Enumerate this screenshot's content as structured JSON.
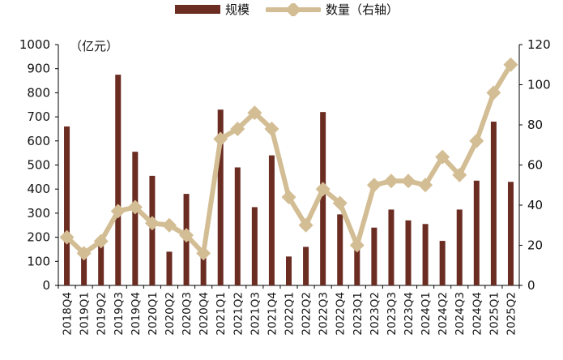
{
  "legend": {
    "bar_label": "规模",
    "line_label": "数量（右轴）"
  },
  "unit_label": "（亿元）",
  "colors": {
    "bar": "#6B2C22",
    "line": "#D3BD94"
  },
  "chart_data": {
    "type": "bar+line",
    "categories": [
      "2018Q4",
      "2019Q1",
      "2019Q2",
      "2019Q3",
      "2019Q4",
      "2020Q1",
      "2020Q2",
      "2020Q3",
      "2020Q4",
      "2021Q1",
      "2021Q2",
      "2021Q3",
      "2021Q4",
      "2022Q1",
      "2022Q2",
      "2022Q3",
      "2022Q4",
      "2023Q1",
      "2023Q2",
      "2023Q3",
      "2023Q4",
      "2024Q1",
      "2024Q2",
      "2024Q3",
      "2024Q4",
      "2025Q1",
      "2025Q2"
    ],
    "series": [
      {
        "name": "规模",
        "type": "bar",
        "axis": "left",
        "values": [
          660,
          125,
          185,
          875,
          555,
          455,
          140,
          380,
          120,
          730,
          490,
          325,
          540,
          120,
          160,
          720,
          295,
          150,
          240,
          315,
          270,
          255,
          185,
          315,
          435,
          680,
          430
        ]
      },
      {
        "name": "数量（右轴）",
        "type": "line",
        "axis": "right",
        "values": [
          24,
          16,
          22,
          37,
          39,
          31,
          30,
          25,
          16,
          73,
          78,
          86,
          78,
          44,
          30,
          48,
          41,
          20,
          50,
          52,
          52,
          50,
          64,
          55,
          72,
          96,
          110
        ]
      }
    ],
    "y_left": {
      "min": 0,
      "max": 1000,
      "ticks": [
        0,
        100,
        200,
        300,
        400,
        500,
        600,
        700,
        800,
        900,
        1000
      ]
    },
    "y_right": {
      "min": 0,
      "max": 120,
      "ticks": [
        0,
        20,
        40,
        60,
        80,
        100,
        120
      ]
    },
    "grid": false,
    "legend_position": "top"
  }
}
